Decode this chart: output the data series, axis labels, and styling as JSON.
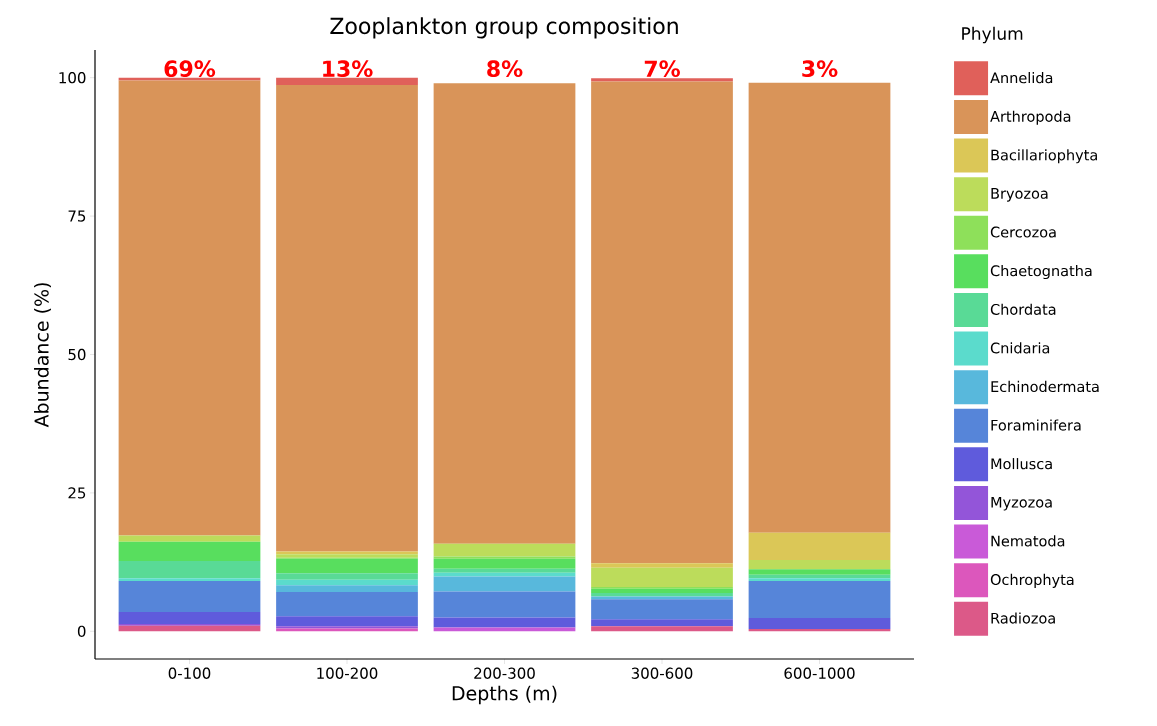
{
  "chart_data": {
    "type": "bar",
    "stacked": true,
    "title": "Zooplankton group composition",
    "xlabel": "Depths (m)",
    "ylabel": "Abundance (%)",
    "legend_title": "Phylum",
    "legend": "right",
    "categories": [
      "0-100",
      "100-200",
      "200-300",
      "300-600",
      "600-1000"
    ],
    "ylim": [
      -5,
      105
    ],
    "yticks": [
      0,
      25,
      50,
      75,
      100
    ],
    "grid": false,
    "series": [
      {
        "name": "Radiozoa",
        "color": "#dc5988",
        "values": [
          1.0,
          0,
          0,
          0.9,
          0.4
        ]
      },
      {
        "name": "Ochrophyta",
        "color": "#dc57bc",
        "values": [
          0,
          0.5,
          0,
          0,
          0
        ]
      },
      {
        "name": "Nematoda",
        "color": "#c95ad8",
        "values": [
          0,
          0,
          0.7,
          0,
          0
        ]
      },
      {
        "name": "Myzozoa",
        "color": "#9355d9",
        "values": [
          0.3,
          0.4,
          0,
          0,
          0
        ]
      },
      {
        "name": "Mollusca",
        "color": "#5f5bdc",
        "values": [
          2.2,
          1.8,
          1.8,
          1.3,
          2.0
        ]
      },
      {
        "name": "Foraminifera",
        "color": "#5685d9",
        "values": [
          5.6,
          4.4,
          4.7,
          3.6,
          6.7
        ]
      },
      {
        "name": "Echinodermata",
        "color": "#58b8dc",
        "values": [
          0,
          1.2,
          2.7,
          0.5,
          0
        ]
      },
      {
        "name": "Cnidaria",
        "color": "#5bdbcc",
        "values": [
          0.5,
          1.0,
          0.7,
          0,
          0.5
        ]
      },
      {
        "name": "Chordata",
        "color": "#59da96",
        "values": [
          3.1,
          1.2,
          0.7,
          0.6,
          0.6
        ]
      },
      {
        "name": "Chaetognatha",
        "color": "#58de5e",
        "values": [
          3.5,
          2.6,
          1.8,
          0.8,
          1.0
        ]
      },
      {
        "name": "Cercozoa",
        "color": "#8ee05a",
        "values": [
          0,
          0.2,
          0.4,
          0.3,
          0
        ]
      },
      {
        "name": "Bryozoa",
        "color": "#bcdc5b",
        "values": [
          1.1,
          0.6,
          2.3,
          3.5,
          1.7
        ]
      },
      {
        "name": "Bacillariophyta",
        "color": "#dbc757",
        "values": [
          0,
          0.5,
          0,
          0.8,
          4.9
        ]
      },
      {
        "name": "Arthropoda",
        "color": "#d99459",
        "values": [
          82.2,
          84.3,
          83.2,
          87.0,
          81.3
        ]
      },
      {
        "name": "Annelida",
        "color": "#e0605a",
        "values": [
          0.5,
          1.3,
          0,
          0.6,
          0
        ]
      }
    ],
    "annotations": [
      "69%",
      "13%",
      "8%",
      "7%",
      "3%"
    ]
  }
}
